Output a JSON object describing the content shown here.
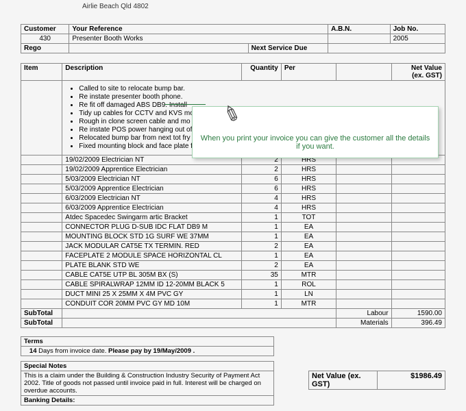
{
  "address_line": "Airlie Beach   Qld   4802",
  "header": {
    "customer_label": "Customer",
    "customer_value": "430",
    "reference_label": "Your Reference",
    "reference_value": "Presenter Booth Works",
    "abn_label": "A.B.N.",
    "jobno_label": "Job No.",
    "jobno_value": "2005",
    "rego_label": "Rego",
    "next_service_label": "Next Service Due"
  },
  "cols": {
    "item": "Item",
    "description": "Description",
    "quantity": "Quantity",
    "per": "Per",
    "netval": "Net Value",
    "exgst": "(ex. GST)"
  },
  "desc_items": [
    "Called to site to relocate bump bar.",
    "Re instate presenter booth phone.",
    "Re fit off  damaged ABS DB9. Install",
    "Tidy up cables for CCTV and KVS mo",
    "Rough in clone screen cable and mo",
    "Re instate POS power hanging out of",
    "Relocated bump bar from next tot fry",
    "Fixed mounting block and face plate for clone screen in cashiers booth."
  ],
  "rows": [
    {
      "d": "19/02/2009 Electrician NT",
      "q": "2",
      "p": "HRS"
    },
    {
      "d": "19/02/2009 Apprentice Electrician",
      "q": "2",
      "p": "HRS"
    },
    {
      "d": "5/03/2009 Electrician NT",
      "q": "6",
      "p": "HRS"
    },
    {
      "d": "5/03/2009 Apprentice Electrician",
      "q": "6",
      "p": "HRS"
    },
    {
      "d": "6/03/2009 Electrician NT",
      "q": "4",
      "p": "HRS"
    },
    {
      "d": "6/03/2009 Apprentice Electrician",
      "q": "4",
      "p": "HRS"
    },
    {
      "d": "Atdec Spacedec Swingarm artic Bracket",
      "q": "1",
      "p": "TOT"
    },
    {
      "d": "CONNECTOR PLUG D-SUB IDC FLAT DB9 M",
      "q": "1",
      "p": "EA"
    },
    {
      "d": "MOUNTING BLOCK STD 1G SURF WE 37MM",
      "q": "1",
      "p": "EA"
    },
    {
      "d": "JACK MODULAR CAT5E TX TERMIN. RED",
      "q": "2",
      "p": "EA"
    },
    {
      "d": "FACEPLATE 2 MODULE SPACE HORIZONTAL CL",
      "q": "1",
      "p": "EA"
    },
    {
      "d": "PLATE BLANK STD WE",
      "q": "2",
      "p": "EA"
    },
    {
      "d": "CABLE CAT5E UTP BL 305M BX          (S)",
      "q": "35",
      "p": "MTR"
    },
    {
      "d": "CABLE SPIRALWRAP 12MM ID 12-20MM BLACK 5",
      "q": "1",
      "p": "ROL"
    },
    {
      "d": "DUCT MINI 25 X 25MM X 4M PVC GY",
      "q": "1",
      "p": "LN"
    },
    {
      "d": "CONDUIT COR 20MM PVC GY MD 10M",
      "q": "1",
      "p": "MTR"
    }
  ],
  "subtotals": {
    "subtotal_label": "SubTotal",
    "labour_label": "Labour",
    "labour_value": "1590.00",
    "materials_label": "Materials",
    "materials_value": "396.49"
  },
  "terms": {
    "terms_label": "Terms",
    "days": "14",
    "days_suffix": " Days from invoice date. ",
    "pay_by": "Please pay by 19/May/2009 .",
    "notes_label": "Special Notes",
    "notes_text": "This is a claim under the Building & Construction Industry Security of Payment Act 2002. Title of goods not passed until invoice paid in full. Interest will be charged on overdue accounts.",
    "banking_label": "Banking Details:"
  },
  "netvalue": {
    "label": "Net Value (ex. GST)",
    "value": "$1986.49"
  },
  "tooltip_text": "When you print your invoice you can give the customer all the details if you want."
}
